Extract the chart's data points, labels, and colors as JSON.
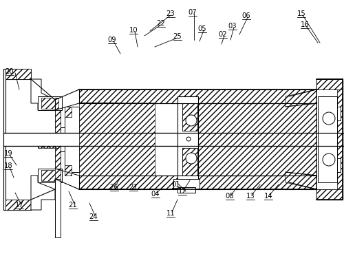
{
  "bg_color": "#ffffff",
  "line_color": "#000000",
  "figsize": [
    5.0,
    3.85
  ],
  "dpi": 100,
  "top_labels": [
    [
      "23",
      248,
      22,
      218,
      48
    ],
    [
      "22",
      234,
      36,
      210,
      55
    ],
    [
      "25",
      258,
      55,
      215,
      68
    ],
    [
      "09",
      165,
      60,
      175,
      78
    ],
    [
      "10",
      196,
      46,
      212,
      66
    ],
    [
      "07",
      282,
      20,
      282,
      58
    ],
    [
      "05",
      296,
      44,
      293,
      62
    ],
    [
      "06",
      360,
      25,
      340,
      52
    ],
    [
      "03",
      340,
      40,
      336,
      58
    ],
    [
      "02",
      326,
      52,
      322,
      65
    ],
    [
      "15",
      440,
      22,
      450,
      62
    ],
    [
      "16",
      445,
      38,
      448,
      62
    ]
  ],
  "left_labels": [
    [
      "20",
      14,
      108
    ]
  ],
  "bottom_labels": [
    [
      "17",
      30,
      298
    ],
    [
      "18",
      14,
      246
    ],
    [
      "19",
      14,
      228
    ],
    [
      "21",
      108,
      298
    ],
    [
      "24",
      138,
      315
    ],
    [
      "26",
      168,
      272
    ],
    [
      "27",
      196,
      272
    ],
    [
      "01",
      258,
      268
    ],
    [
      "04",
      228,
      282
    ],
    [
      "11",
      250,
      310
    ],
    [
      "12",
      267,
      278
    ],
    [
      "08",
      336,
      285
    ],
    [
      "13",
      366,
      285
    ],
    [
      "14",
      392,
      285
    ]
  ]
}
